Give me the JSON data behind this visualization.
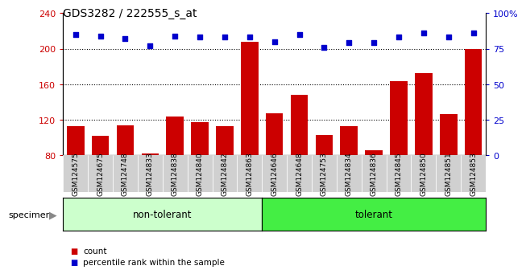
{
  "title": "GDS3282 / 222555_s_at",
  "categories": [
    "GSM124575",
    "GSM124675",
    "GSM124748",
    "GSM124833",
    "GSM124838",
    "GSM124840",
    "GSM124842",
    "GSM124863",
    "GSM124646",
    "GSM124648",
    "GSM124753",
    "GSM124834",
    "GSM124836",
    "GSM124845",
    "GSM124850",
    "GSM124851",
    "GSM124853"
  ],
  "counts": [
    113,
    102,
    114,
    82,
    124,
    117,
    113,
    208,
    127,
    148,
    103,
    113,
    86,
    163,
    172,
    126,
    200
  ],
  "percentile_ranks": [
    85,
    84,
    82,
    77,
    84,
    83,
    83,
    83,
    80,
    85,
    76,
    79,
    79,
    83,
    86,
    83,
    86
  ],
  "non_tolerant_count": 8,
  "tolerant_count": 9,
  "group_labels": [
    "non-tolerant",
    "tolerant"
  ],
  "non_tolerant_color": "#ccffcc",
  "tolerant_color": "#44ee44",
  "bar_color": "#cc0000",
  "dot_color": "#0000cc",
  "ylim_left": [
    80,
    240
  ],
  "ylim_right": [
    0,
    100
  ],
  "yticks_left": [
    80,
    120,
    160,
    200,
    240
  ],
  "yticks_right": [
    0,
    25,
    50,
    75,
    100
  ],
  "yticklabels_right": [
    "0",
    "25",
    "50",
    "75",
    "100%"
  ],
  "grid_values": [
    120,
    160,
    200
  ],
  "ylabel_left_color": "#cc0000",
  "ylabel_right_color": "#0000cc",
  "bg_color": "#ffffff",
  "plot_bg_color": "#ffffff",
  "tick_label_bg": "#d0d0d0",
  "specimen_label": "specimen",
  "legend_count_label": "count",
  "legend_pct_label": "percentile rank within the sample"
}
